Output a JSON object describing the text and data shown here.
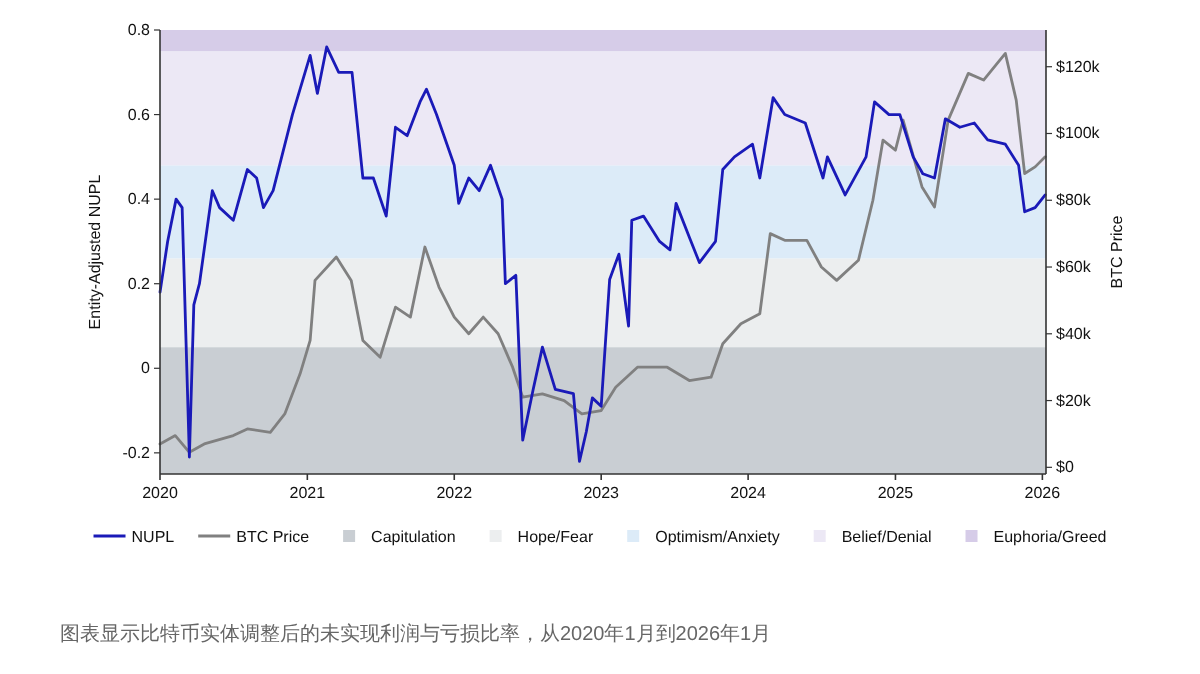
{
  "chart_data": {
    "type": "line",
    "ylabel": "Entity-Adjusted NUPL",
    "y2label": "BTC Price",
    "legend": "bottom",
    "xlim": [
      "2020-01-01",
      "2026-01-10"
    ],
    "xticks": [
      "2020",
      "2021",
      "2022",
      "2023",
      "2024",
      "2025",
      "2026"
    ],
    "ylim": [
      -0.25,
      0.8
    ],
    "yticks": [
      -0.2,
      0,
      0.2,
      0.4,
      0.6,
      0.8
    ],
    "y2lim": [
      -2,
      131
    ],
    "y2ticks": [
      {
        "value": 0,
        "label": "$0"
      },
      {
        "value": 20,
        "label": "$20k"
      },
      {
        "value": 40,
        "label": "$40k"
      },
      {
        "value": 60,
        "label": "$60k"
      },
      {
        "value": 80,
        "label": "$80k"
      },
      {
        "value": 100,
        "label": "$100k"
      },
      {
        "value": 120,
        "label": "$120k"
      }
    ],
    "bands": [
      {
        "axis": "y",
        "from": -0.25,
        "to": 0.05,
        "label": "Capitulation",
        "color": "#c9ced3"
      },
      {
        "axis": "y",
        "from": 0.05,
        "to": 0.26,
        "label": "Hope/Fear",
        "color": "#eceeef"
      },
      {
        "axis": "y",
        "from": 0.26,
        "to": 0.48,
        "label": "Optimism/Anxiety",
        "color": "#dcebf8"
      },
      {
        "axis": "y",
        "from": 0.48,
        "to": 0.75,
        "label": "Belief/Denial",
        "color": "#ece8f5"
      },
      {
        "axis": "y",
        "from": 0.75,
        "to": 0.8,
        "label": "Euphoria/Greed",
        "color": "#d6cce8"
      }
    ],
    "series": [
      {
        "name": "NUPL",
        "color": "#1a1ab8",
        "x": [
          "2020-01-01",
          "2020-01-20",
          "2020-02-10",
          "2020-02-25",
          "2020-03-14",
          "2020-03-25",
          "2020-04-08",
          "2020-05-10",
          "2020-05-28",
          "2020-07-01",
          "2020-08-05",
          "2020-08-28",
          "2020-09-14",
          "2020-10-08",
          "2020-11-25",
          "2021-01-08",
          "2021-01-26",
          "2021-02-18",
          "2021-03-20",
          "2021-04-22",
          "2021-05-19",
          "2021-06-14",
          "2021-07-16",
          "2021-08-08",
          "2021-09-06",
          "2021-10-08",
          "2021-10-24",
          "2021-11-18",
          "2022-01-01",
          "2022-01-12",
          "2022-02-06",
          "2022-03-04",
          "2022-04-01",
          "2022-04-30",
          "2022-05-08",
          "2022-06-03",
          "2022-06-20",
          "2022-07-16",
          "2022-08-08",
          "2022-09-09",
          "2022-10-24",
          "2022-11-08",
          "2022-11-25",
          "2022-12-10",
          "2023-01-01",
          "2023-01-22",
          "2023-02-14",
          "2023-03-10",
          "2023-03-18",
          "2023-04-16",
          "2023-05-26",
          "2023-06-21",
          "2023-07-06",
          "2023-08-08",
          "2023-09-02",
          "2023-10-12",
          "2023-10-30",
          "2023-11-28",
          "2024-01-12",
          "2024-01-30",
          "2024-03-03",
          "2024-04-01",
          "2024-05-22",
          "2024-07-05",
          "2024-07-16",
          "2024-08-29",
          "2024-10-20",
          "2024-11-10",
          "2024-12-16",
          "2025-01-12",
          "2025-02-14",
          "2025-03-10",
          "2025-04-08",
          "2025-05-05",
          "2025-06-10",
          "2025-07-16",
          "2025-08-18",
          "2025-10-01",
          "2025-11-03",
          "2025-11-18",
          "2025-12-14",
          "2026-01-08"
        ],
        "values": [
          0.18,
          0.3,
          0.4,
          0.38,
          -0.21,
          0.15,
          0.2,
          0.42,
          0.38,
          0.35,
          0.47,
          0.45,
          0.38,
          0.42,
          0.6,
          0.74,
          0.65,
          0.76,
          0.7,
          0.7,
          0.45,
          0.45,
          0.36,
          0.57,
          0.55,
          0.63,
          0.66,
          0.6,
          0.48,
          0.39,
          0.45,
          0.42,
          0.48,
          0.4,
          0.2,
          0.22,
          -0.17,
          -0.05,
          0.05,
          -0.05,
          -0.06,
          -0.22,
          -0.15,
          -0.07,
          -0.09,
          0.21,
          0.27,
          0.1,
          0.35,
          0.36,
          0.3,
          0.28,
          0.39,
          0.31,
          0.25,
          0.3,
          0.47,
          0.5,
          0.53,
          0.45,
          0.64,
          0.6,
          0.58,
          0.45,
          0.5,
          0.41,
          0.5,
          0.63,
          0.6,
          0.6,
          0.5,
          0.46,
          0.45,
          0.59,
          0.57,
          0.58,
          0.54,
          0.53,
          0.48,
          0.37,
          0.38,
          0.41
        ]
      },
      {
        "name": "BTC Price",
        "axis": "y2",
        "color": "#808080",
        "x": [
          "2020-01-01",
          "2020-02-08",
          "2020-03-14",
          "2020-04-20",
          "2020-07-01",
          "2020-08-05",
          "2020-10-01",
          "2020-11-06",
          "2020-12-14",
          "2021-01-08",
          "2021-01-20",
          "2021-03-14",
          "2021-04-20",
          "2021-05-19",
          "2021-07-01",
          "2021-08-08",
          "2021-09-14",
          "2021-10-20",
          "2021-11-24",
          "2022-01-01",
          "2022-02-06",
          "2022-03-14",
          "2022-04-20",
          "2022-05-26",
          "2022-06-20",
          "2022-08-08",
          "2022-10-01",
          "2022-11-14",
          "2023-01-01",
          "2023-02-06",
          "2023-04-01",
          "2023-06-14",
          "2023-08-08",
          "2023-10-01",
          "2023-10-30",
          "2023-12-14",
          "2024-01-30",
          "2024-02-25",
          "2024-04-01",
          "2024-05-26",
          "2024-07-01",
          "2024-08-08",
          "2024-10-01",
          "2024-11-06",
          "2024-12-01",
          "2025-01-01",
          "2025-01-20",
          "2025-03-08",
          "2025-04-08",
          "2025-05-12",
          "2025-07-01",
          "2025-08-08",
          "2025-10-01",
          "2025-10-28",
          "2025-11-18",
          "2025-12-14",
          "2026-01-08"
        ],
        "values": [
          7,
          9.5,
          4.5,
          7,
          9.5,
          11.5,
          10.5,
          16,
          28,
          38,
          56,
          63,
          56,
          38,
          33,
          48,
          45,
          66,
          54,
          45,
          40,
          45,
          40,
          30,
          21,
          22,
          20,
          16,
          17,
          24,
          30,
          30,
          26,
          27,
          37,
          43,
          46,
          70,
          68,
          68,
          60,
          56,
          62,
          80,
          98,
          95,
          104,
          84,
          78,
          104,
          118,
          116,
          124,
          110,
          88,
          90,
          93
        ]
      }
    ],
    "annotations": [
      "图表显示比特币实体调整后的未实现利润与亏损比率，从2020年1月到2026年1月"
    ]
  }
}
